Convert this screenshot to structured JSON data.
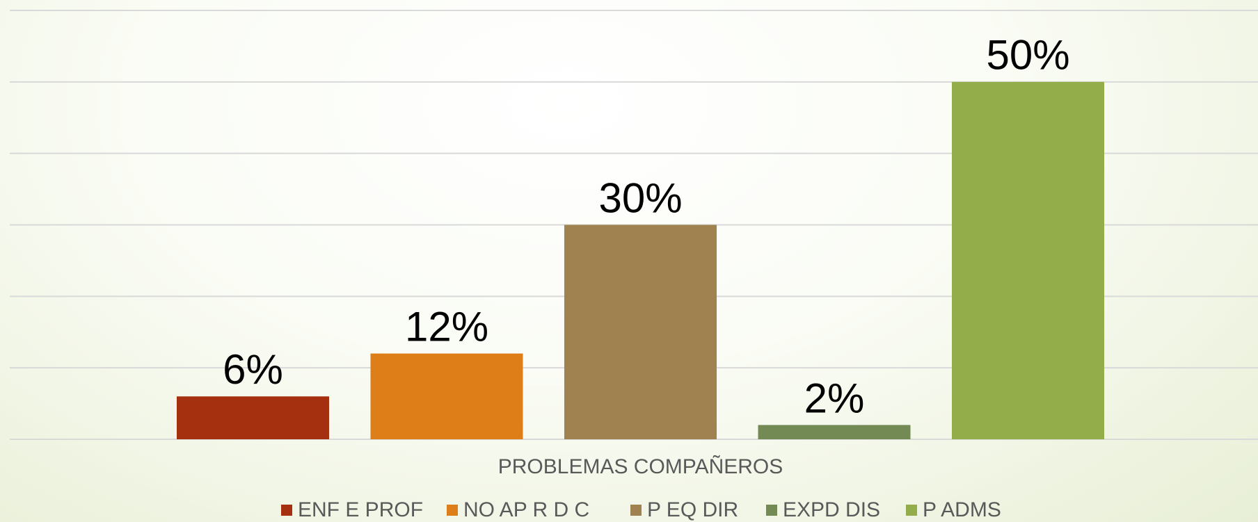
{
  "chart_data": {
    "type": "bar",
    "categories": [
      "PROBLEMAS COMPAÑEROS"
    ],
    "series": [
      {
        "name": "ENF E PROF",
        "color": "#a5300f",
        "values": [
          6
        ],
        "value_labels": [
          "6%"
        ]
      },
      {
        "name": "NO AP R D C",
        "color": "#de7e18",
        "values": [
          12
        ],
        "value_labels": [
          "12%"
        ]
      },
      {
        "name": "P EQ DIR",
        "color": "#a08250",
        "values": [
          30
        ],
        "value_labels": [
          "30%"
        ]
      },
      {
        "name": "EXPD DIS",
        "color": "#738a55",
        "values": [
          2
        ],
        "value_labels": [
          "2%"
        ]
      },
      {
        "name": "P ADMS",
        "color": "#93ad4b",
        "values": [
          50
        ],
        "value_labels": [
          "50%"
        ]
      }
    ],
    "ylim": [
      0,
      60
    ],
    "yticks": [
      0,
      10,
      20,
      30,
      40,
      50,
      60
    ],
    "grid": true
  }
}
